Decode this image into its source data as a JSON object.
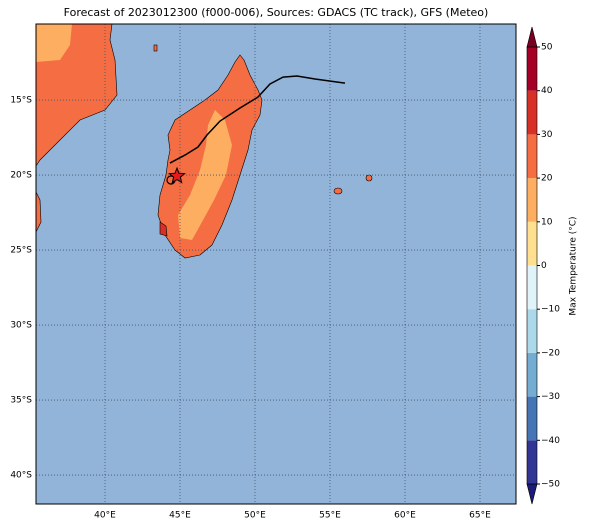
{
  "map": {
    "title": "Forecast of 2023012300 (f000-006), Sources: GDACS (TC track), GFS (Meteo)",
    "xlim": [
      35.4,
      67.4
    ],
    "ylim": [
      -41.93,
      -9.93
    ],
    "xticks": [
      {
        "value": 40,
        "label": "40°E"
      },
      {
        "value": 45,
        "label": "45°E"
      },
      {
        "value": 50,
        "label": "50°E"
      },
      {
        "value": 55,
        "label": "55°E"
      },
      {
        "value": 60,
        "label": "60°E"
      },
      {
        "value": 65,
        "label": "65°E"
      }
    ],
    "yticks": [
      {
        "value": -15,
        "label": "15°S"
      },
      {
        "value": -20,
        "label": "20°S"
      },
      {
        "value": -25,
        "label": "25°S"
      },
      {
        "value": -30,
        "label": "30°S"
      },
      {
        "value": -35,
        "label": "35°S"
      },
      {
        "value": -40,
        "label": "40°S"
      }
    ],
    "grid": true,
    "track": {
      "lon": [
        56.0,
        54.0,
        52.8,
        51.87,
        51.0,
        50.2,
        49.0,
        47.67,
        46.8,
        46.2,
        45.33,
        44.33
      ],
      "lat": [
        -13.87,
        -13.6,
        -13.4,
        -13.47,
        -13.93,
        -14.8,
        -15.53,
        -16.4,
        -17.33,
        -18.13,
        -18.67,
        -19.2
      ],
      "color": "#000000"
    },
    "storm": {
      "lon": 44.8,
      "lat": -20.07,
      "color": "#e41a1c"
    },
    "start": {
      "lon": 44.4,
      "lat": -20.33
    }
  },
  "colorbar": {
    "label": "Max Temperature (°C)",
    "lim": [
      -50,
      50
    ],
    "ticks": [
      {
        "value": -50,
        "label": "−50"
      },
      {
        "value": -40,
        "label": "−40"
      },
      {
        "value": -30,
        "label": "−30"
      },
      {
        "value": -20,
        "label": "−20"
      },
      {
        "value": -10,
        "label": "−10"
      },
      0,
      10,
      20,
      30,
      40,
      50
    ],
    "colors": [
      "#313695",
      "#4575b4",
      "#74add1",
      "#abd9e9",
      "#e0f3f8",
      "#fee090",
      "#fdae61",
      "#f46d43",
      "#d73027",
      "#a50026"
    ],
    "under_color": "#1c1c78",
    "over_color": "#7a0022"
  }
}
